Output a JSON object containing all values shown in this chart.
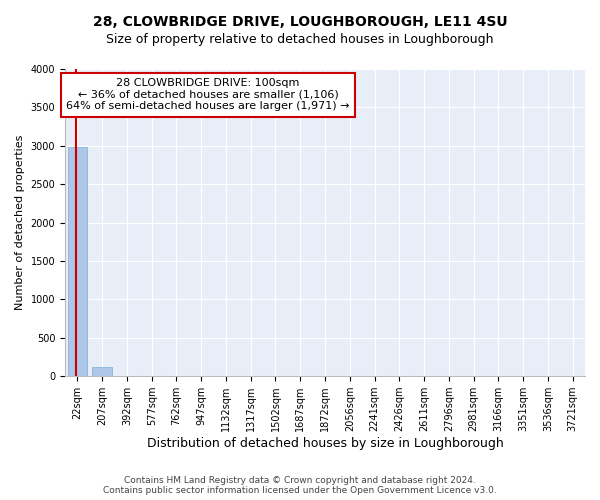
{
  "title1": "28, CLOWBRIDGE DRIVE, LOUGHBOROUGH, LE11 4SU",
  "title2": "Size of property relative to detached houses in Loughborough",
  "xlabel": "Distribution of detached houses by size in Loughborough",
  "ylabel": "Number of detached properties",
  "footer1": "Contains HM Land Registry data © Crown copyright and database right 2024.",
  "footer2": "Contains public sector information licensed under the Open Government Licence v3.0.",
  "annotation_title": "28 CLOWBRIDGE DRIVE: 100sqm",
  "annotation_line2": "← 36% of detached houses are smaller (1,106)",
  "annotation_line3": "64% of semi-detached houses are larger (1,971) →",
  "bar_color": "#aec6e8",
  "bar_edge_color": "#7aadd4",
  "annotation_box_color": "#ffffff",
  "annotation_box_edge": "#cc0000",
  "vline_color": "#cc0000",
  "background_color": "#e8eef8",
  "categories": [
    "22sqm",
    "207sqm",
    "392sqm",
    "577sqm",
    "762sqm",
    "947sqm",
    "1132sqm",
    "1317sqm",
    "1502sqm",
    "1687sqm",
    "1872sqm",
    "2056sqm",
    "2241sqm",
    "2426sqm",
    "2611sqm",
    "2796sqm",
    "2981sqm",
    "3166sqm",
    "3351sqm",
    "3536sqm",
    "3721sqm"
  ],
  "values": [
    2980,
    120,
    3,
    1,
    0,
    0,
    0,
    0,
    0,
    0,
    0,
    0,
    0,
    0,
    0,
    0,
    0,
    0,
    0,
    0,
    0
  ],
  "ylim": [
    0,
    4000
  ],
  "yticks": [
    0,
    500,
    1000,
    1500,
    2000,
    2500,
    3000,
    3500,
    4000
  ],
  "title1_fontsize": 10,
  "title2_fontsize": 9,
  "xlabel_fontsize": 9,
  "ylabel_fontsize": 8,
  "tick_fontsize": 7,
  "annotation_fontsize": 8,
  "footer_fontsize": 6.5
}
